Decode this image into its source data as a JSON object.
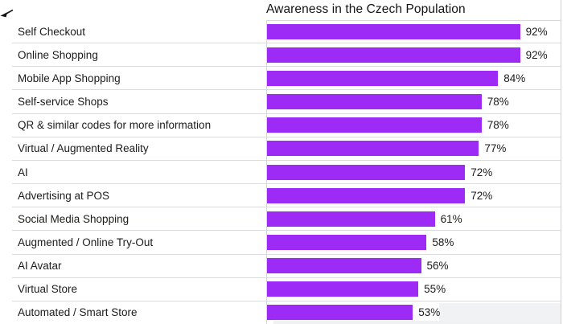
{
  "chart_data": {
    "type": "bar",
    "orientation": "horizontal",
    "title": "Awareness in the Czech Population",
    "categories": [
      "Self Checkout",
      "Online Shopping",
      "Mobile App Shopping",
      "Self-service Shops",
      "QR & similar codes for more information",
      "Virtual / Augmented Reality",
      "AI",
      "Advertising at POS",
      "Social Media Shopping",
      "Augmented / Online Try-Out",
      "AI Avatar",
      "Virtual Store",
      "Automated / Smart Store"
    ],
    "values": [
      92,
      92,
      84,
      78,
      78,
      77,
      72,
      72,
      61,
      58,
      56,
      55,
      53
    ],
    "value_suffix": "%",
    "xlabel": "",
    "ylabel": "",
    "xlim": [
      0,
      100
    ],
    "grid": "row-separators",
    "legend_position": "none",
    "colors": {
      "bar": "#9d2bf5",
      "separator": "#dcdce0",
      "axis": "#d6d6db",
      "text": "#1c1c1c"
    }
  },
  "icons": {
    "annotation_arrow": "arrow-icon"
  }
}
